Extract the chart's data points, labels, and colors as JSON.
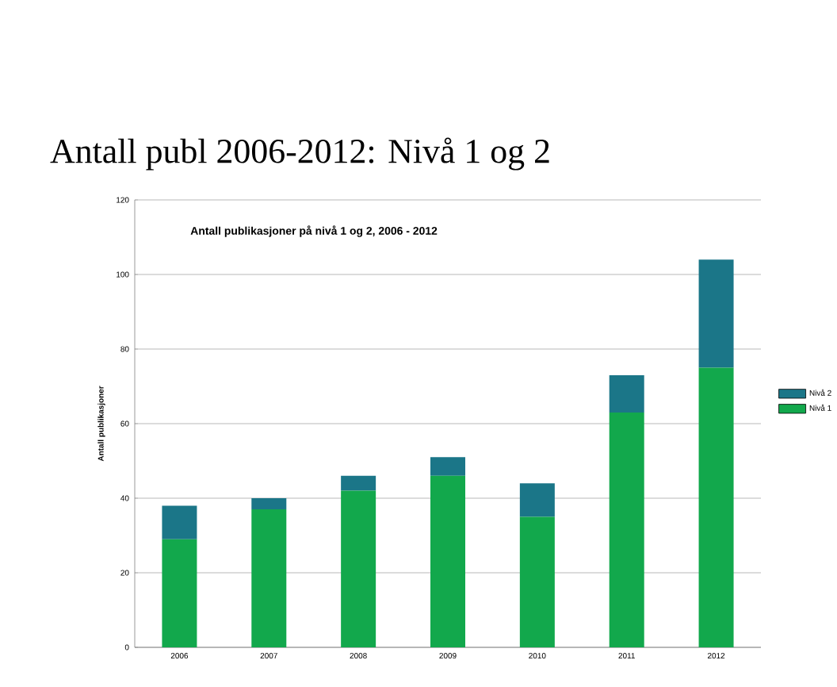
{
  "chart_data": {
    "type": "bar",
    "stacked": true,
    "title": "Antall publ 2006-2012: Nivå 1 og 2",
    "subtitle": "Antall publikasjoner på nivå 1 og 2, 2006 - 2012",
    "ylabel": "Antall publikasjoner",
    "categories": [
      "2006",
      "2007",
      "2008",
      "2009",
      "2010",
      "2011",
      "2012"
    ],
    "series": [
      {
        "name": "Nivå 1",
        "color": "#12a84c",
        "values": [
          29,
          37,
          42,
          46,
          35,
          63,
          75
        ]
      },
      {
        "name": "Nivå 2",
        "color": "#1b7688",
        "values": [
          9,
          3,
          4,
          5,
          9,
          10,
          29
        ]
      }
    ],
    "ylim": [
      0,
      120
    ],
    "yticks": [
      0,
      20,
      40,
      60,
      80,
      100,
      120
    ],
    "grid": "y",
    "legend": "right"
  }
}
